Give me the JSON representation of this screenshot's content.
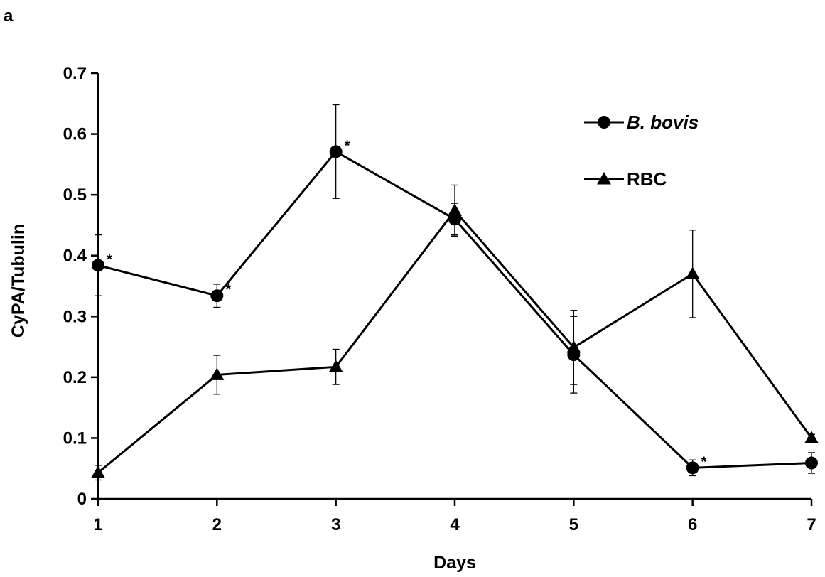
{
  "panel_label": "a",
  "chart_data": {
    "type": "line",
    "xlabel": "Days",
    "ylabel": "CyPA/Tubulin",
    "x": [
      1,
      2,
      3,
      4,
      5,
      6,
      7
    ],
    "xlim": [
      1,
      7
    ],
    "ylim": [
      0,
      0.7
    ],
    "x_ticks": [
      "1",
      "2",
      "3",
      "4",
      "5",
      "6",
      "7"
    ],
    "y_ticks": [
      "0",
      "0.1",
      "0.2",
      "0.3",
      "0.4",
      "0.5",
      "0.6",
      "0.7"
    ],
    "y_tick_values": [
      0,
      0.1,
      0.2,
      0.3,
      0.4,
      0.5,
      0.6,
      0.7
    ],
    "grid": false,
    "legend_position": "top-right",
    "series": [
      {
        "name": "B. bovis",
        "marker": "circle",
        "italic": true,
        "values": [
          0.384,
          0.334,
          0.571,
          0.46,
          0.237,
          0.051,
          0.059
        ],
        "errors": [
          0.05,
          0.019,
          0.077,
          0.026,
          0.063,
          0.013,
          0.017
        ],
        "significant_label": "*",
        "significant": [
          true,
          true,
          true,
          false,
          false,
          true,
          false
        ]
      },
      {
        "name": "RBC",
        "marker": "triangle",
        "italic": false,
        "values": [
          0.043,
          0.204,
          0.217,
          0.474,
          0.249,
          0.37,
          0.1
        ],
        "errors": [
          0.012,
          0.032,
          0.029,
          0.042,
          0.061,
          0.072,
          0.006
        ]
      }
    ]
  }
}
